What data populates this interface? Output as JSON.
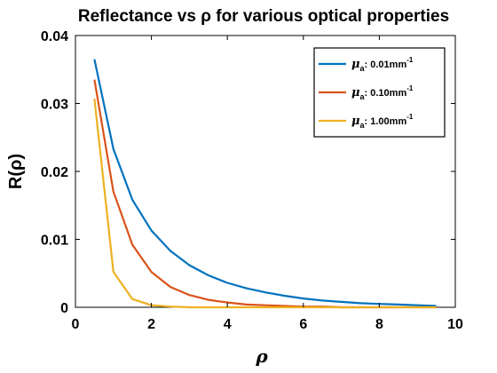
{
  "chart_data": {
    "type": "line",
    "title": "Reflectance vs ρ for various optical properties",
    "xlabel": "ρ",
    "ylabel": "R(ρ)",
    "xlim": [
      0,
      10
    ],
    "ylim": [
      0,
      0.04
    ],
    "x_ticks": [
      0,
      2,
      4,
      6,
      8,
      10
    ],
    "y_ticks": [
      0,
      0.01,
      0.02,
      0.03,
      0.04
    ],
    "x_tick_labels": [
      "0",
      "2",
      "4",
      "6",
      "8",
      "10"
    ],
    "y_tick_labels": [
      "0",
      "0.01",
      "0.02",
      "0.03",
      "0.04"
    ],
    "grid": false,
    "legend_position": "top-right",
    "x": [
      0.5,
      1.0,
      1.5,
      2.0,
      2.5,
      3.0,
      3.5,
      4.0,
      4.5,
      5.0,
      5.5,
      6.0,
      6.5,
      7.0,
      7.5,
      8.0,
      8.5,
      9.0,
      9.5
    ],
    "series": [
      {
        "name": "μa: 0.01mm-1",
        "legend": {
          "symbol": "μ",
          "sub": "a",
          "text": ": 0.01mm",
          "sup": "-1"
        },
        "color": "#0072BD",
        "values": [
          0.0365,
          0.0233,
          0.0158,
          0.0113,
          0.0083,
          0.0062,
          0.0047,
          0.0036,
          0.0028,
          0.0022,
          0.0017,
          0.0013,
          0.001,
          0.0008,
          0.0006,
          0.0005,
          0.0004,
          0.0003,
          0.0002
        ]
      },
      {
        "name": "μa: 0.10mm-1",
        "legend": {
          "symbol": "μ",
          "sub": "a",
          "text": ": 0.10mm",
          "sup": "-1"
        },
        "color": "#D95319",
        "values": [
          0.0335,
          0.017,
          0.0092,
          0.0052,
          0.003,
          0.0018,
          0.0011,
          0.0007,
          0.0004,
          0.0003,
          0.0002,
          0.0001,
          0.0001,
          0.0,
          0.0,
          0.0,
          0.0,
          0.0,
          0.0
        ]
      },
      {
        "name": "μa: 1.00mm-1",
        "legend": {
          "symbol": "μ",
          "sub": "a",
          "text": ": 1.00mm",
          "sup": "-1"
        },
        "color": "#EDB120",
        "values": [
          0.0307,
          0.0052,
          0.0012,
          0.0003,
          0.0001,
          0.0,
          0.0,
          0.0,
          0.0,
          0.0,
          0.0,
          0.0,
          0.0,
          0.0,
          0.0,
          0.0,
          0.0,
          0.0,
          0.0
        ]
      }
    ]
  }
}
